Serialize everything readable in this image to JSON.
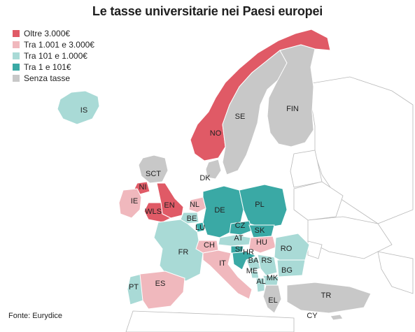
{
  "title": "Le tasse universitarie nei Paesi europei",
  "source": "Fonte: Eurydice",
  "colors": {
    "over3000": "#e05a66",
    "t1001_3000": "#f0b8bd",
    "t101_1000": "#a9dad6",
    "t1_101": "#3aa9a5",
    "none": "#c8c8c8",
    "nodata": "#ffffff",
    "border": "#ffffff",
    "outline": "#b9b9b9"
  },
  "legend": [
    {
      "key": "over3000",
      "label": "Oltre 3.000€"
    },
    {
      "key": "t1001_3000",
      "label": "Tra 1.001 e 3.000€"
    },
    {
      "key": "t101_1000",
      "label": "Tra 101 e 1.000€"
    },
    {
      "key": "t1_101",
      "label": "Tra 1 e 101€"
    },
    {
      "key": "none",
      "label": "Senza tasse"
    }
  ],
  "countries": {
    "IS": {
      "label": "IS",
      "category": "t101_1000"
    },
    "NO": {
      "label": "NO",
      "category": "over3000"
    },
    "SE": {
      "label": "SE",
      "category": "none"
    },
    "FIN": {
      "label": "FIN",
      "category": "none"
    },
    "SCT": {
      "label": "SCT",
      "category": "none"
    },
    "NI": {
      "label": "NI",
      "category": "over3000"
    },
    "IE": {
      "label": "IE",
      "category": "t1001_3000"
    },
    "EN": {
      "label": "EN",
      "category": "over3000"
    },
    "WLS": {
      "label": "WLS",
      "category": "over3000"
    },
    "DK": {
      "label": "DK",
      "category": "none"
    },
    "NL": {
      "label": "NL",
      "category": "t1001_3000"
    },
    "BE": {
      "label": "BE",
      "category": "t101_1000"
    },
    "LU": {
      "label": "LU",
      "category": "t1_101"
    },
    "DE": {
      "label": "DE",
      "category": "t1_101"
    },
    "PL": {
      "label": "PL",
      "category": "t1_101"
    },
    "CZ": {
      "label": "CZ",
      "category": "t1_101"
    },
    "SK": {
      "label": "SK",
      "category": "t1_101"
    },
    "AT": {
      "label": "AT",
      "category": "t101_1000"
    },
    "HU": {
      "label": "HU",
      "category": "t1001_3000"
    },
    "CH": {
      "label": "CH",
      "category": "t1001_3000"
    },
    "FR": {
      "label": "FR",
      "category": "t101_1000"
    },
    "SI": {
      "label": "SI",
      "category": "t1_101"
    },
    "HR": {
      "label": "HR",
      "category": "t1_101"
    },
    "RO": {
      "label": "RO",
      "category": "t101_1000"
    },
    "BA": {
      "label": "BA",
      "category": "t101_1000"
    },
    "RS": {
      "label": "RS",
      "category": "t101_1000"
    },
    "IT": {
      "label": "IT",
      "category": "t1001_3000"
    },
    "ME": {
      "label": "ME",
      "category": "t101_1000"
    },
    "BG": {
      "label": "BG",
      "category": "t101_1000"
    },
    "MK": {
      "label": "MK",
      "category": "t101_1000"
    },
    "AL": {
      "label": "AL",
      "category": "t101_1000"
    },
    "PT": {
      "label": "PT",
      "category": "t101_1000"
    },
    "ES": {
      "label": "ES",
      "category": "t1001_3000"
    },
    "EL": {
      "label": "EL",
      "category": "none"
    },
    "TR": {
      "label": "TR",
      "category": "none"
    },
    "CY": {
      "label": "CY",
      "category": "none"
    }
  }
}
